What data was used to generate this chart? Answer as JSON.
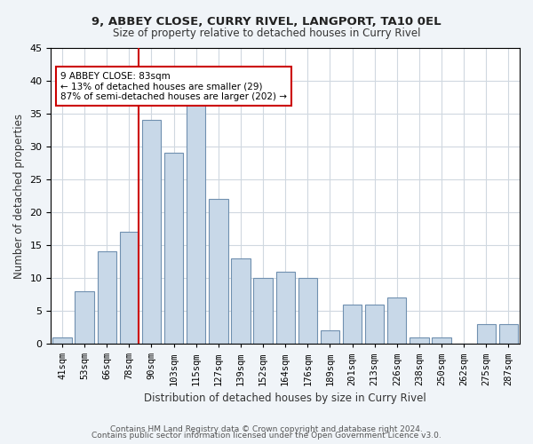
{
  "title1": "9, ABBEY CLOSE, CURRY RIVEL, LANGPORT, TA10 0EL",
  "title2": "Size of property relative to detached houses in Curry Rivel",
  "xlabel": "Distribution of detached houses by size in Curry Rivel",
  "ylabel": "Number of detached properties",
  "categories": [
    "41sqm",
    "53sqm",
    "66sqm",
    "78sqm",
    "90sqm",
    "103sqm",
    "115sqm",
    "127sqm",
    "139sqm",
    "152sqm",
    "164sqm",
    "176sqm",
    "189sqm",
    "201sqm",
    "213sqm",
    "226sqm",
    "238sqm",
    "250sqm",
    "262sqm",
    "275sqm",
    "287sqm"
  ],
  "values": [
    1,
    8,
    14,
    17,
    34,
    29,
    37,
    22,
    13,
    10,
    11,
    10,
    2,
    6,
    6,
    7,
    1,
    1,
    0,
    3,
    3
  ],
  "bar_color": "#c8d8e8",
  "bar_edge_color": "#7090b0",
  "vline_x": 3,
  "vline_color": "#cc0000",
  "annotation_text": "9 ABBEY CLOSE: 83sqm\n← 13% of detached houses are smaller (29)\n87% of semi-detached houses are larger (202) →",
  "annotation_box_color": "#ffffff",
  "annotation_box_edge": "#cc0000",
  "ylim": [
    0,
    45
  ],
  "yticks": [
    0,
    5,
    10,
    15,
    20,
    25,
    30,
    35,
    40,
    45
  ],
  "footer1": "Contains HM Land Registry data © Crown copyright and database right 2024.",
  "footer2": "Contains public sector information licensed under the Open Government Licence v3.0.",
  "bg_color": "#f0f4f8",
  "plot_bg_color": "#ffffff",
  "grid_color": "#d0d8e0"
}
